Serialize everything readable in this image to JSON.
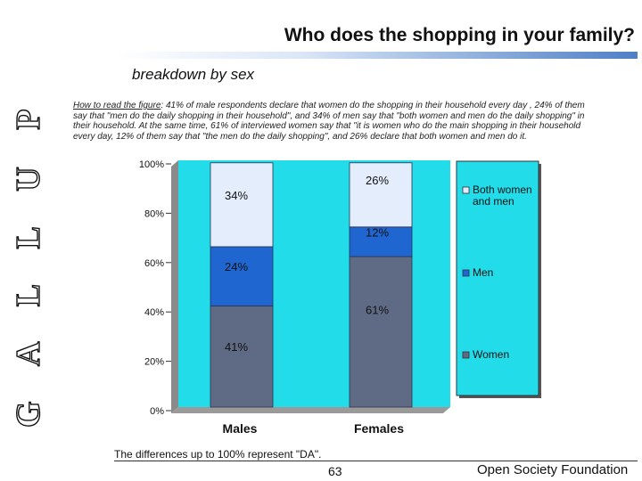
{
  "brand": {
    "vertical_text": "G A L L U P"
  },
  "title": "Who does the shopping in your family?",
  "subtitle": "breakdown by sex",
  "note": {
    "lead": "How to read the figure",
    "text": ": 41% of male respondents declare that women do the shopping in their household every day , 24% of them say that \"men do the daily shopping in their household\", and 34% of men say that \"both women and men do the daily shopping\" in their household. At the same time, 61% of interviewed women say that \"it is women who do the main shopping in their household every day, 12% of them  say that \"the men do the daily shopping\", and 26% declare that both women and men do it."
  },
  "chart_data": {
    "type": "bar",
    "stacked": true,
    "categories": [
      "Males",
      "Females"
    ],
    "series": [
      {
        "name": "Women",
        "values": [
          41,
          61
        ],
        "labels": [
          "41%",
          "61%"
        ],
        "color": "#5f6a85"
      },
      {
        "name": "Men",
        "values": [
          24,
          12
        ],
        "labels": [
          "24%",
          "12%"
        ],
        "color": "#1f66d1"
      },
      {
        "name": "Both women and men",
        "values": [
          34,
          26
        ],
        "labels": [
          "34%",
          "26%"
        ],
        "color": "#e4edfb"
      }
    ],
    "ylim": [
      0,
      100
    ],
    "yticks": [
      "0%",
      "20%",
      "40%",
      "60%",
      "80%",
      "100%"
    ],
    "plot_background": "#22dde9",
    "legend_background": "#22dde9",
    "legend_position": "right"
  },
  "footer": {
    "note": "The differences up to 100% represent \"DA\".",
    "page": "63",
    "organization": "Open Society Foundation"
  }
}
